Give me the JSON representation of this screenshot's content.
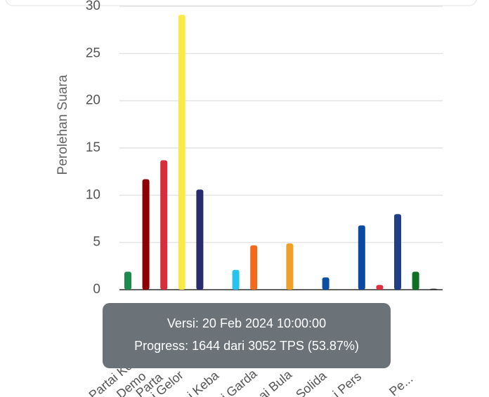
{
  "chart_data": {
    "type": "bar",
    "y_label": "Perolehan Suara",
    "categories": [
      "Partai Keb",
      "Demo",
      "Parta",
      "i Gelor",
      null,
      "i Keba",
      null,
      "i Garda",
      null,
      "ai Bula",
      null,
      "Solida",
      null,
      "i Pers",
      null,
      null,
      "Pe...",
      null
    ],
    "values": [
      1.9,
      11.7,
      13.7,
      29.1,
      10.6,
      0,
      2.1,
      4.7,
      0,
      4.9,
      0,
      1.3,
      0,
      6.8,
      0.5,
      8.0,
      1.9,
      0.1
    ],
    "colors": [
      "#1e8a4c",
      "#8b0000",
      "#d62e3a",
      "#fbe94a",
      "#2a2a6e",
      "#cccccc",
      "#29c4ee",
      "#f26a1b",
      "#cccccc",
      "#f0a026",
      "#cccccc",
      "#0d4fa0",
      "#cccccc",
      "#0b4aa2",
      "#e03040",
      "#213f86",
      "#0f6e24",
      "#222222"
    ],
    "ylim": [
      0,
      30
    ],
    "yticks": [
      0,
      5,
      10,
      15,
      20,
      25,
      30
    ],
    "grid": true,
    "tooltip": {
      "lines": [
        "Versi: 20 Feb 2024 10:00:00",
        "Progress: 1644 dari 3052 TPS (53.87%)"
      ]
    }
  }
}
